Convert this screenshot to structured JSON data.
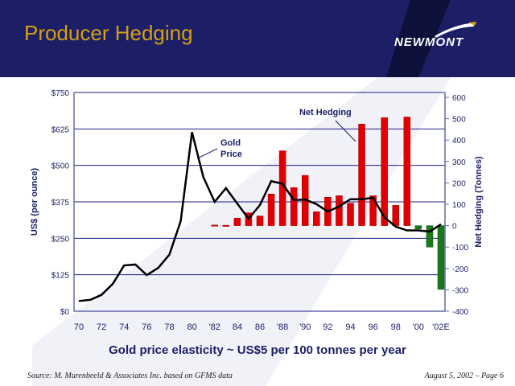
{
  "slide": {
    "title": "Producer Hedging",
    "logo_text": "NEWMONT",
    "caption": "Gold price elasticity ~ US$5 per 100 tonnes per year",
    "source": "Source: M. Murenbeeld & Associates Inc. based on GFMS data",
    "page": "August 5, 2002 – Page 6"
  },
  "colors": {
    "header": "#1c1f66",
    "title": "#d4a017",
    "positive_bar": "#e00000",
    "negative_bar": "#1a7a1a",
    "grid": "#1c1f8a",
    "line": "#000000"
  },
  "chart_data": {
    "type": "bar+line",
    "categories": [
      "70",
      "71",
      "72",
      "73",
      "74",
      "75",
      "76",
      "77",
      "78",
      "79",
      "80",
      "81",
      "82",
      "83",
      "84",
      "85",
      "86",
      "87",
      "88",
      "89",
      "90",
      "91",
      "92",
      "93",
      "94",
      "95",
      "96",
      "97",
      "98",
      "99",
      "00",
      "01",
      "02E"
    ],
    "x_tick_labels": [
      "70",
      "72",
      "74",
      "76",
      "78",
      "80",
      "'82",
      "84",
      "86",
      "'88",
      "'90",
      "92",
      "94",
      "96",
      "98",
      "'00",
      "'02E"
    ],
    "x_tick_years": [
      "70",
      "72",
      "74",
      "76",
      "78",
      "80",
      "82",
      "84",
      "86",
      "88",
      "90",
      "92",
      "94",
      "96",
      "98",
      "00",
      "02E"
    ],
    "series": [
      {
        "name": "Gold Price",
        "axis": "left",
        "kind": "line",
        "values": [
          35,
          39,
          56,
          94,
          157,
          160,
          124,
          148,
          194,
          309,
          614,
          460,
          375,
          422,
          369,
          317,
          364,
          446,
          437,
          381,
          383,
          367,
          342,
          359,
          384,
          384,
          389,
          322,
          290,
          277,
          277,
          273,
          298
        ]
      },
      {
        "name": "Net Hedging",
        "axis": "right",
        "kind": "bar",
        "values": [
          null,
          null,
          null,
          null,
          null,
          null,
          null,
          null,
          null,
          null,
          null,
          null,
          3,
          2,
          35,
          60,
          45,
          148,
          350,
          178,
          235,
          65,
          133,
          140,
          105,
          475,
          140,
          505,
          95,
          508,
          -15,
          -100,
          -298
        ]
      }
    ],
    "left_axis": {
      "label": "US$ (per ounce)",
      "range": [
        0,
        750
      ],
      "ticks": [
        "$0",
        "$125",
        "$250",
        "$375",
        "$500",
        "$625",
        "$750"
      ],
      "values": [
        0,
        125,
        250,
        375,
        500,
        625,
        750
      ]
    },
    "right_axis": {
      "label": "Net Hedging (Tonnes)",
      "range": [
        -400,
        600
      ],
      "ticks": [
        "-400",
        "-300",
        "-200",
        "-100",
        "0",
        "100",
        "200",
        "300",
        "400",
        "500",
        "600"
      ],
      "values": [
        -400,
        -300,
        -200,
        -100,
        0,
        100,
        200,
        300,
        400,
        500,
        600
      ]
    },
    "annotations": {
      "gold_price": "Gold Price",
      "gold_line1": "Gold",
      "gold_line2": "Price",
      "net_hedging": "Net Hedging"
    },
    "grid": true
  }
}
